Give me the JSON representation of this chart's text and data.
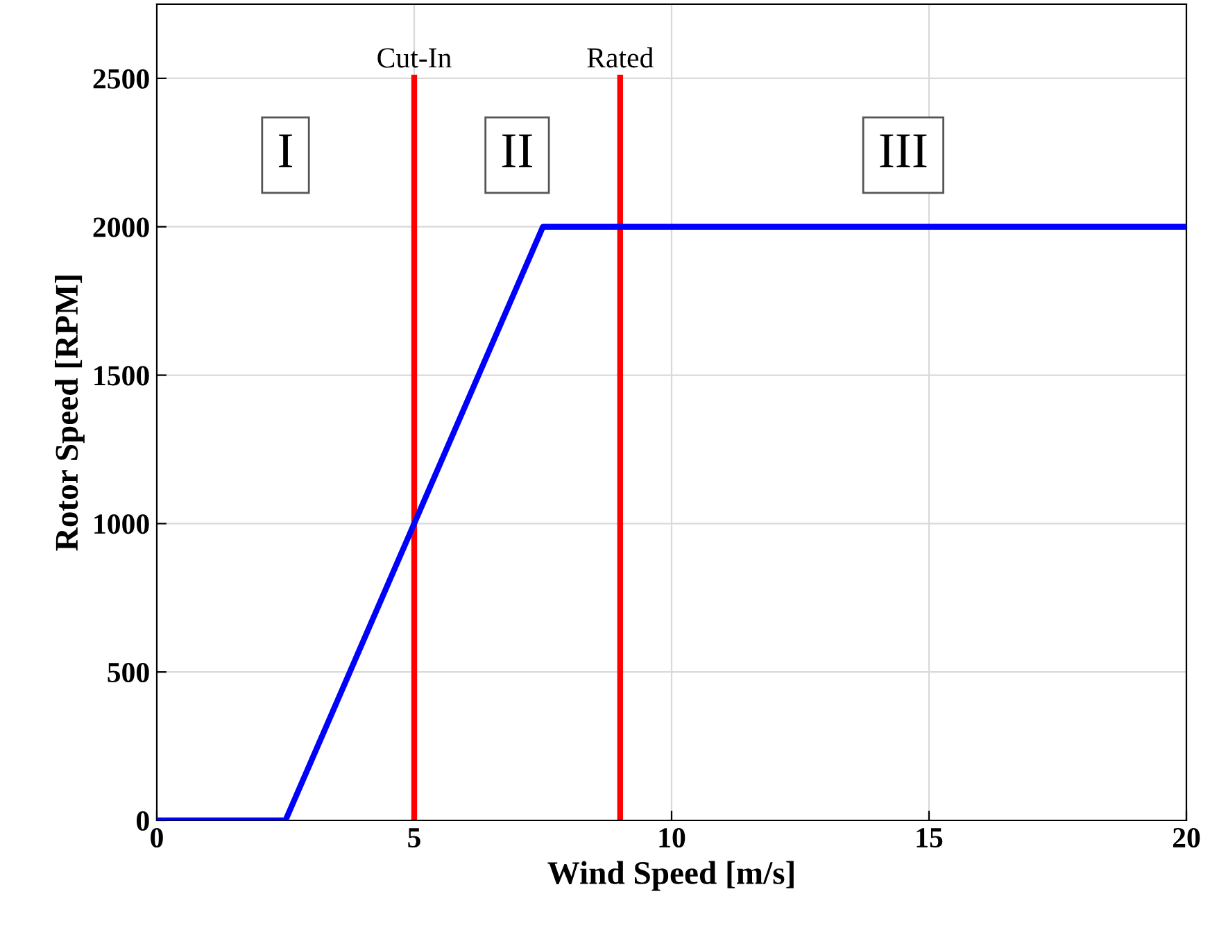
{
  "chart_data": {
    "type": "line",
    "xlabel": "Wind Speed [m/s]",
    "ylabel": "Rotor Speed [RPM]",
    "x": [
      0,
      2.5,
      7.5,
      20
    ],
    "series": [
      {
        "color": "#0000ff",
        "values": [
          0,
          0,
          2000,
          2000
        ]
      }
    ],
    "xlim": [
      0,
      20
    ],
    "ylim": [
      0,
      2750
    ],
    "xticks": [
      0,
      5,
      10,
      15,
      20
    ],
    "yticks": [
      0,
      500,
      1000,
      1500,
      2000,
      2500
    ],
    "grid": true,
    "marker": "none",
    "line_style": "solid",
    "ref_lines": [
      {
        "axis": "x",
        "value": 5,
        "label": "Cut-In",
        "color": "#ff0000"
      },
      {
        "axis": "x",
        "value": 9,
        "label": "Rated",
        "color": "#ff0000"
      }
    ],
    "annotations": [
      "I",
      "II",
      "III"
    ]
  }
}
